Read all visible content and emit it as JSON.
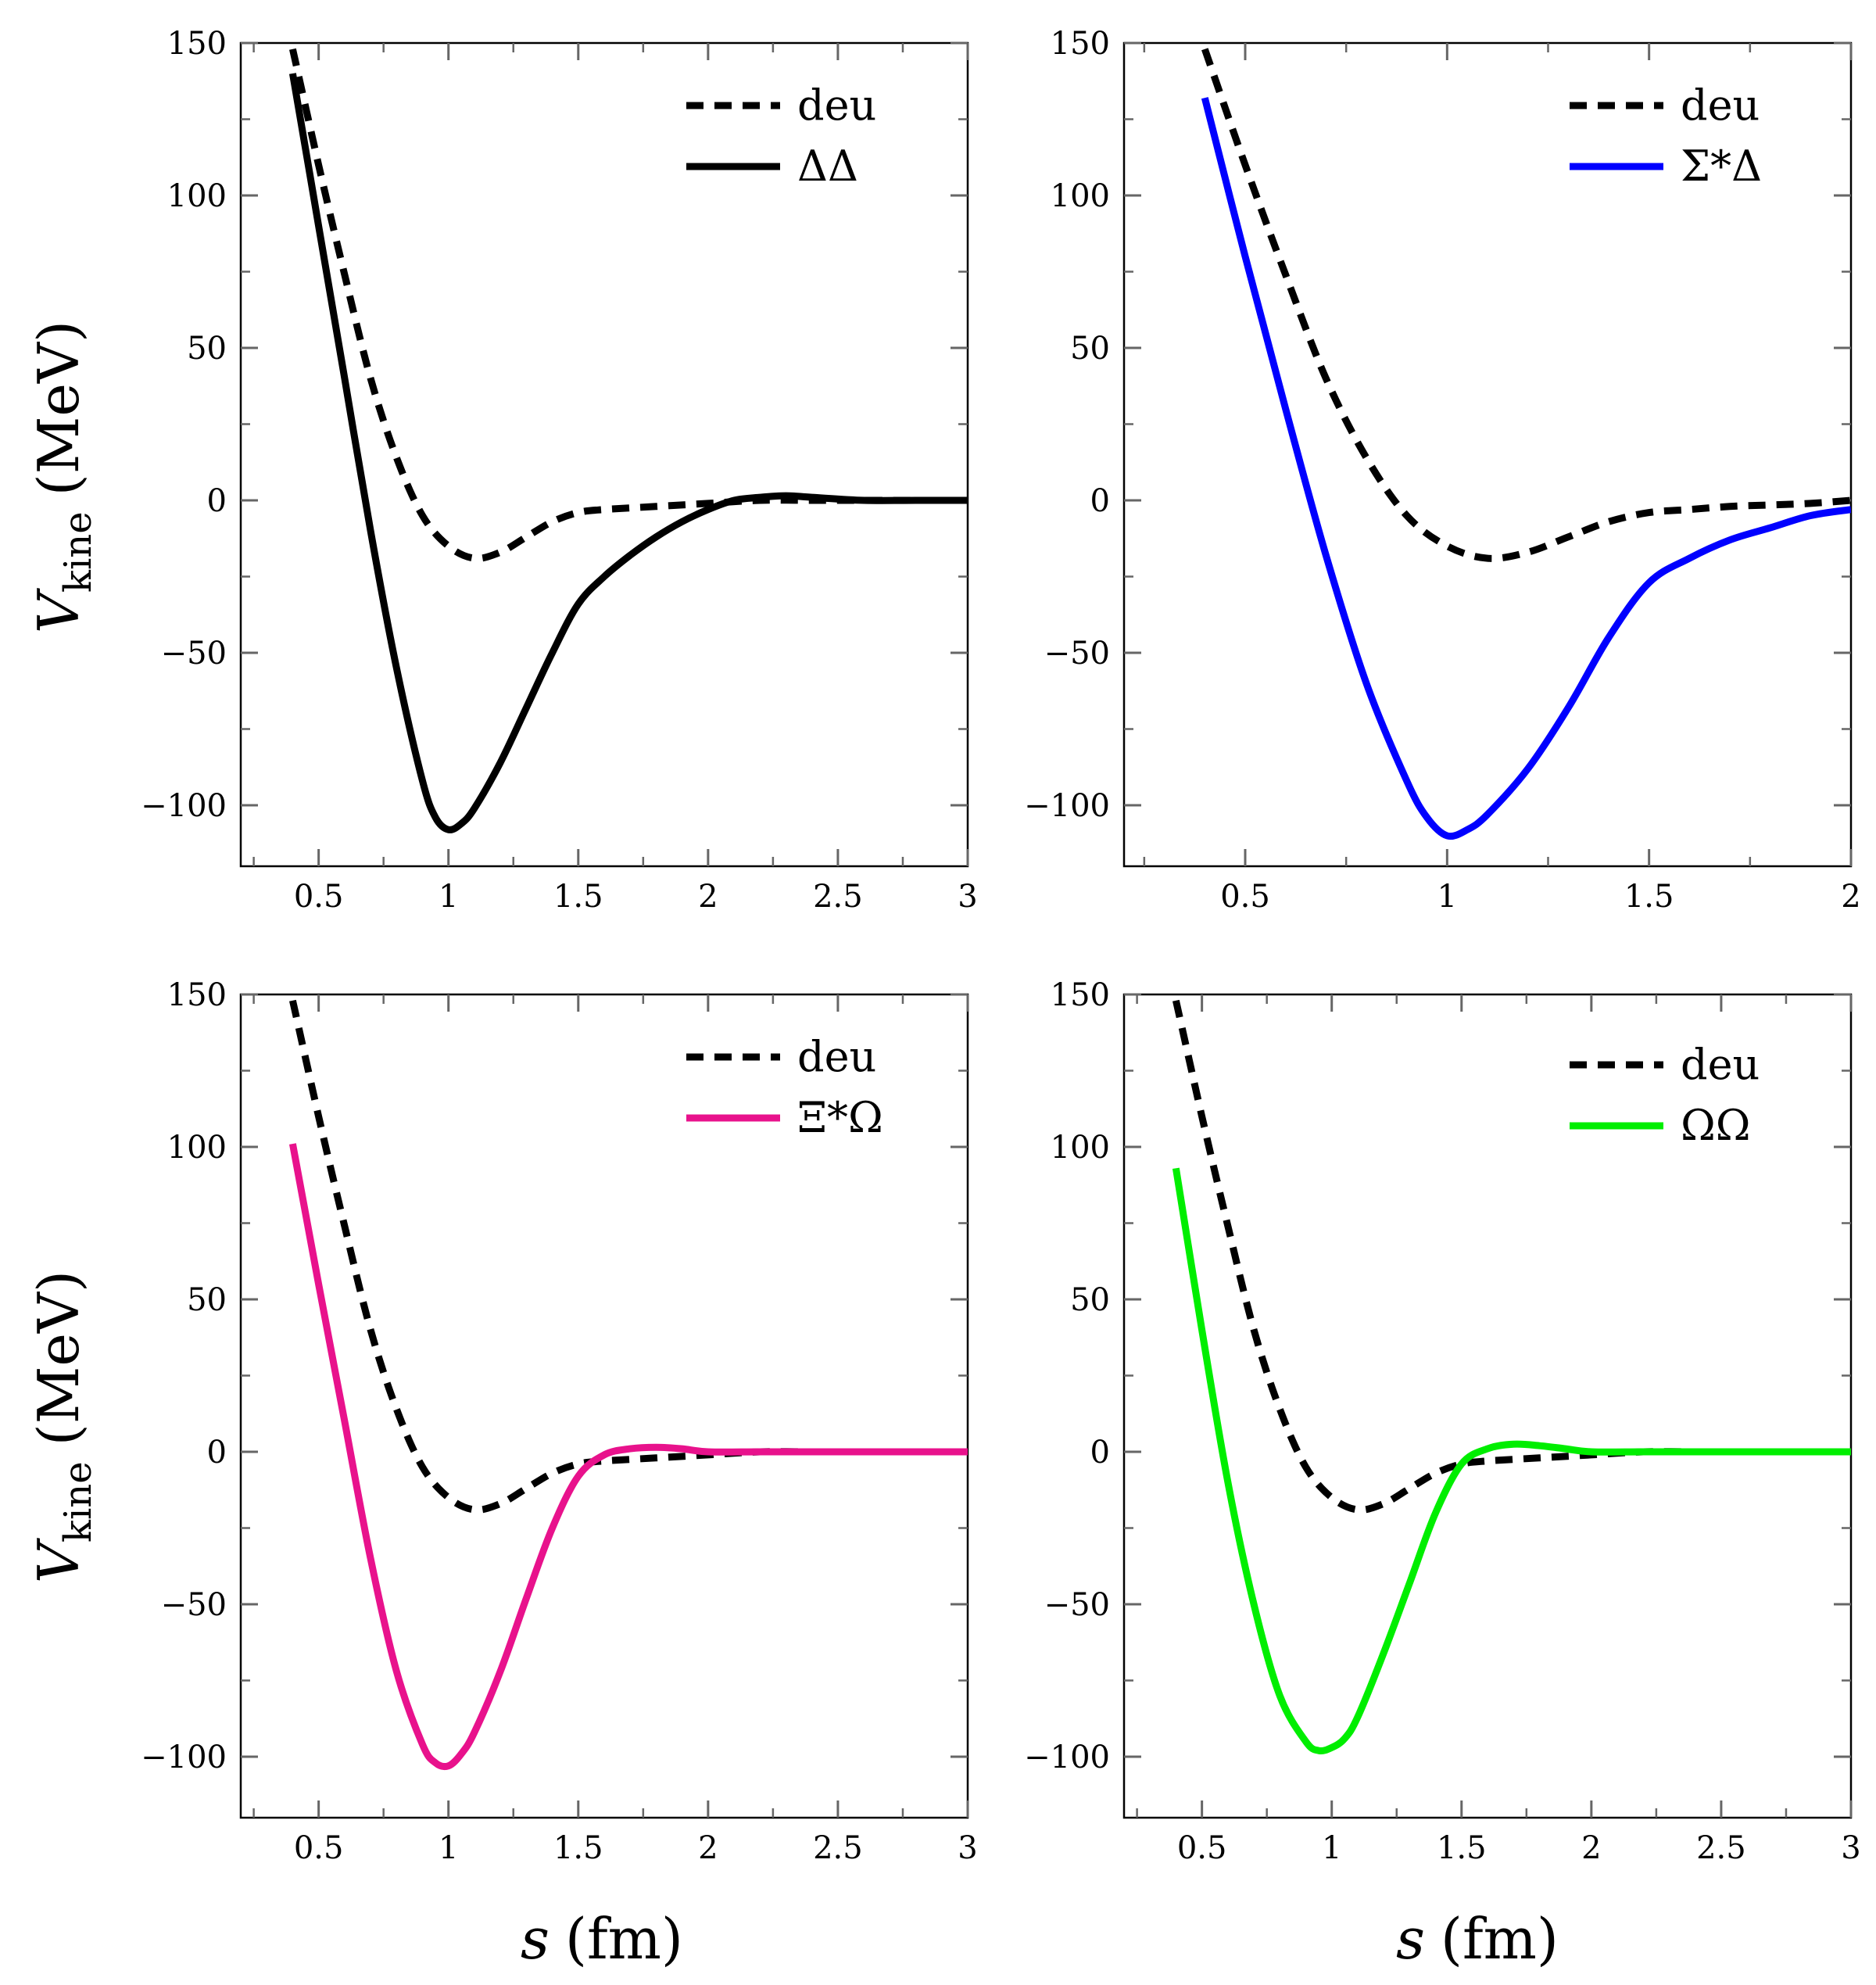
{
  "figure": {
    "x_axis_label": {
      "var": "s",
      "unit": "(fm)"
    },
    "y_axis_label": {
      "var": "V",
      "sub": "kine",
      "unit": "(MeV)"
    }
  },
  "chart_data": [
    {
      "type": "line",
      "title": "",
      "xlim": [
        0.2,
        3
      ],
      "ylim": [
        -120,
        150
      ],
      "xticks": [
        0.5,
        1,
        1.5,
        2,
        2.5,
        3
      ],
      "xtick_labels": [
        "0.5",
        "1",
        "1.5",
        "2",
        "2.5",
        "3"
      ],
      "yticks": [
        150,
        100,
        50,
        0,
        -50,
        -100
      ],
      "ytick_labels": [
        "150",
        "100",
        "50",
        "0",
        "−50",
        "−100"
      ],
      "legend_position": "top-right",
      "series": [
        {
          "name": "deu",
          "style": "dashed",
          "color": "#000000",
          "x": [
            0.4,
            0.5,
            0.6,
            0.7,
            0.8,
            0.9,
            1.0,
            1.1,
            1.2,
            1.3,
            1.4,
            1.5,
            1.6,
            1.8,
            2.0,
            2.2,
            2.4,
            2.6,
            2.8,
            3.0
          ],
          "y": [
            148,
            110,
            74,
            40,
            14,
            -5,
            -15,
            -19,
            -17,
            -12,
            -7,
            -4,
            -3,
            -2,
            -1,
            0,
            0,
            0,
            0,
            0
          ]
        },
        {
          "name": "ΔΔ",
          "style": "solid",
          "color": "#000000",
          "x": [
            0.4,
            0.5,
            0.6,
            0.7,
            0.8,
            0.9,
            0.95,
            1.0,
            1.05,
            1.1,
            1.2,
            1.3,
            1.4,
            1.5,
            1.6,
            1.7,
            1.8,
            1.9,
            2.0,
            2.1,
            2.2,
            2.3,
            2.4,
            2.6,
            2.8,
            3.0
          ],
          "y": [
            140,
            90,
            40,
            -10,
            -55,
            -92,
            -104,
            -108,
            -106,
            -101,
            -86,
            -68,
            -50,
            -34,
            -25,
            -18,
            -12,
            -7,
            -3,
            0,
            1,
            1.5,
            1,
            0,
            0,
            0
          ]
        }
      ]
    },
    {
      "type": "line",
      "title": "",
      "xlim": [
        0.2,
        2
      ],
      "ylim": [
        -120,
        150
      ],
      "xticks": [
        0.5,
        1,
        1.5,
        2
      ],
      "xtick_labels": [
        "0.5",
        "1",
        "1.5",
        "2"
      ],
      "yticks": [
        150,
        100,
        50,
        0,
        -50,
        -100
      ],
      "ytick_labels": [
        "150",
        "100",
        "50",
        "0",
        "−50",
        "−100"
      ],
      "legend_position": "top-right",
      "series": [
        {
          "name": "deu",
          "style": "dashed",
          "color": "#000000",
          "x": [
            0.4,
            0.5,
            0.6,
            0.7,
            0.8,
            0.9,
            1.0,
            1.1,
            1.2,
            1.3,
            1.4,
            1.5,
            1.6,
            1.7,
            1.8,
            1.9,
            2.0
          ],
          "y": [
            148,
            110,
            74,
            40,
            14,
            -5,
            -15,
            -19,
            -17,
            -12,
            -7,
            -4,
            -3,
            -2,
            -1.5,
            -1,
            0
          ]
        },
        {
          "name": "Σ*Δ",
          "style": "solid",
          "color": "#0000ff",
          "x": [
            0.4,
            0.5,
            0.6,
            0.7,
            0.8,
            0.9,
            0.95,
            1.0,
            1.05,
            1.1,
            1.2,
            1.3,
            1.4,
            1.5,
            1.6,
            1.7,
            1.8,
            1.9,
            2.0
          ],
          "y": [
            132,
            80,
            30,
            -18,
            -60,
            -92,
            -104,
            -110,
            -108,
            -103,
            -88,
            -68,
            -45,
            -27,
            -19,
            -13,
            -9,
            -5,
            -3
          ]
        }
      ]
    },
    {
      "type": "line",
      "title": "",
      "xlim": [
        0.2,
        3
      ],
      "ylim": [
        -120,
        150
      ],
      "xticks": [
        0.5,
        1,
        1.5,
        2,
        2.5,
        3
      ],
      "xtick_labels": [
        "0.5",
        "1",
        "1.5",
        "2",
        "2.5",
        "3"
      ],
      "yticks": [
        150,
        100,
        50,
        0,
        -50,
        -100
      ],
      "ytick_labels": [
        "150",
        "100",
        "50",
        "0",
        "−50",
        "−100"
      ],
      "legend_position": "top-right",
      "series": [
        {
          "name": "deu",
          "style": "dashed",
          "color": "#000000",
          "x": [
            0.4,
            0.5,
            0.6,
            0.7,
            0.8,
            0.9,
            1.0,
            1.1,
            1.2,
            1.3,
            1.4,
            1.5,
            1.6,
            1.8,
            2.0,
            2.2,
            2.4,
            2.6,
            2.8,
            3.0
          ],
          "y": [
            148,
            110,
            74,
            40,
            14,
            -5,
            -15,
            -19,
            -17,
            -12,
            -7,
            -4,
            -3,
            -2,
            -1,
            0,
            0,
            0,
            0,
            0
          ]
        },
        {
          "name": "Ξ*Ω",
          "style": "solid",
          "color": "#e8128c",
          "x": [
            0.4,
            0.5,
            0.6,
            0.7,
            0.8,
            0.9,
            0.95,
            1.0,
            1.05,
            1.1,
            1.2,
            1.3,
            1.4,
            1.5,
            1.6,
            1.7,
            1.8,
            1.9,
            2.0,
            2.2,
            2.4,
            2.6,
            2.8,
            3.0
          ],
          "y": [
            101,
            55,
            10,
            -35,
            -72,
            -96,
            -102,
            -103,
            -99,
            -92,
            -72,
            -48,
            -25,
            -8,
            -1,
            1,
            1.5,
            1,
            0,
            0,
            0,
            0,
            0,
            0
          ]
        }
      ]
    },
    {
      "type": "line",
      "title": "",
      "xlim": [
        0.2,
        3
      ],
      "ylim": [
        -120,
        150
      ],
      "xticks": [
        0.5,
        1,
        1.5,
        2,
        2.5,
        3
      ],
      "xtick_labels": [
        "0.5",
        "1",
        "1.5",
        "2",
        "2.5",
        "3"
      ],
      "yticks": [
        150,
        100,
        50,
        0,
        -50,
        -100
      ],
      "ytick_labels": [
        "150",
        "100",
        "50",
        "0",
        "−50",
        "−100"
      ],
      "legend_position": "top-right",
      "series": [
        {
          "name": "deu",
          "style": "dashed",
          "color": "#000000",
          "x": [
            0.4,
            0.5,
            0.6,
            0.7,
            0.8,
            0.9,
            1.0,
            1.1,
            1.2,
            1.3,
            1.4,
            1.5,
            1.6,
            1.8,
            2.0,
            2.2,
            2.4,
            2.6,
            2.8,
            3.0
          ],
          "y": [
            148,
            110,
            74,
            40,
            14,
            -5,
            -15,
            -19,
            -17,
            -12,
            -7,
            -4,
            -3,
            -2,
            -1,
            0,
            0,
            0,
            0,
            0
          ]
        },
        {
          "name": "ΩΩ",
          "style": "solid",
          "color": "#00ee00",
          "x": [
            0.4,
            0.5,
            0.6,
            0.7,
            0.8,
            0.9,
            0.95,
            1.0,
            1.05,
            1.1,
            1.2,
            1.3,
            1.4,
            1.5,
            1.6,
            1.7,
            1.8,
            1.9,
            2.0,
            2.2,
            2.4,
            2.6,
            2.8,
            3.0
          ],
          "y": [
            93,
            40,
            -10,
            -50,
            -80,
            -95,
            -98,
            -97,
            -94,
            -87,
            -66,
            -43,
            -20,
            -4,
            1,
            2.5,
            2,
            1,
            0,
            0,
            0,
            0,
            0,
            0
          ]
        }
      ]
    }
  ]
}
